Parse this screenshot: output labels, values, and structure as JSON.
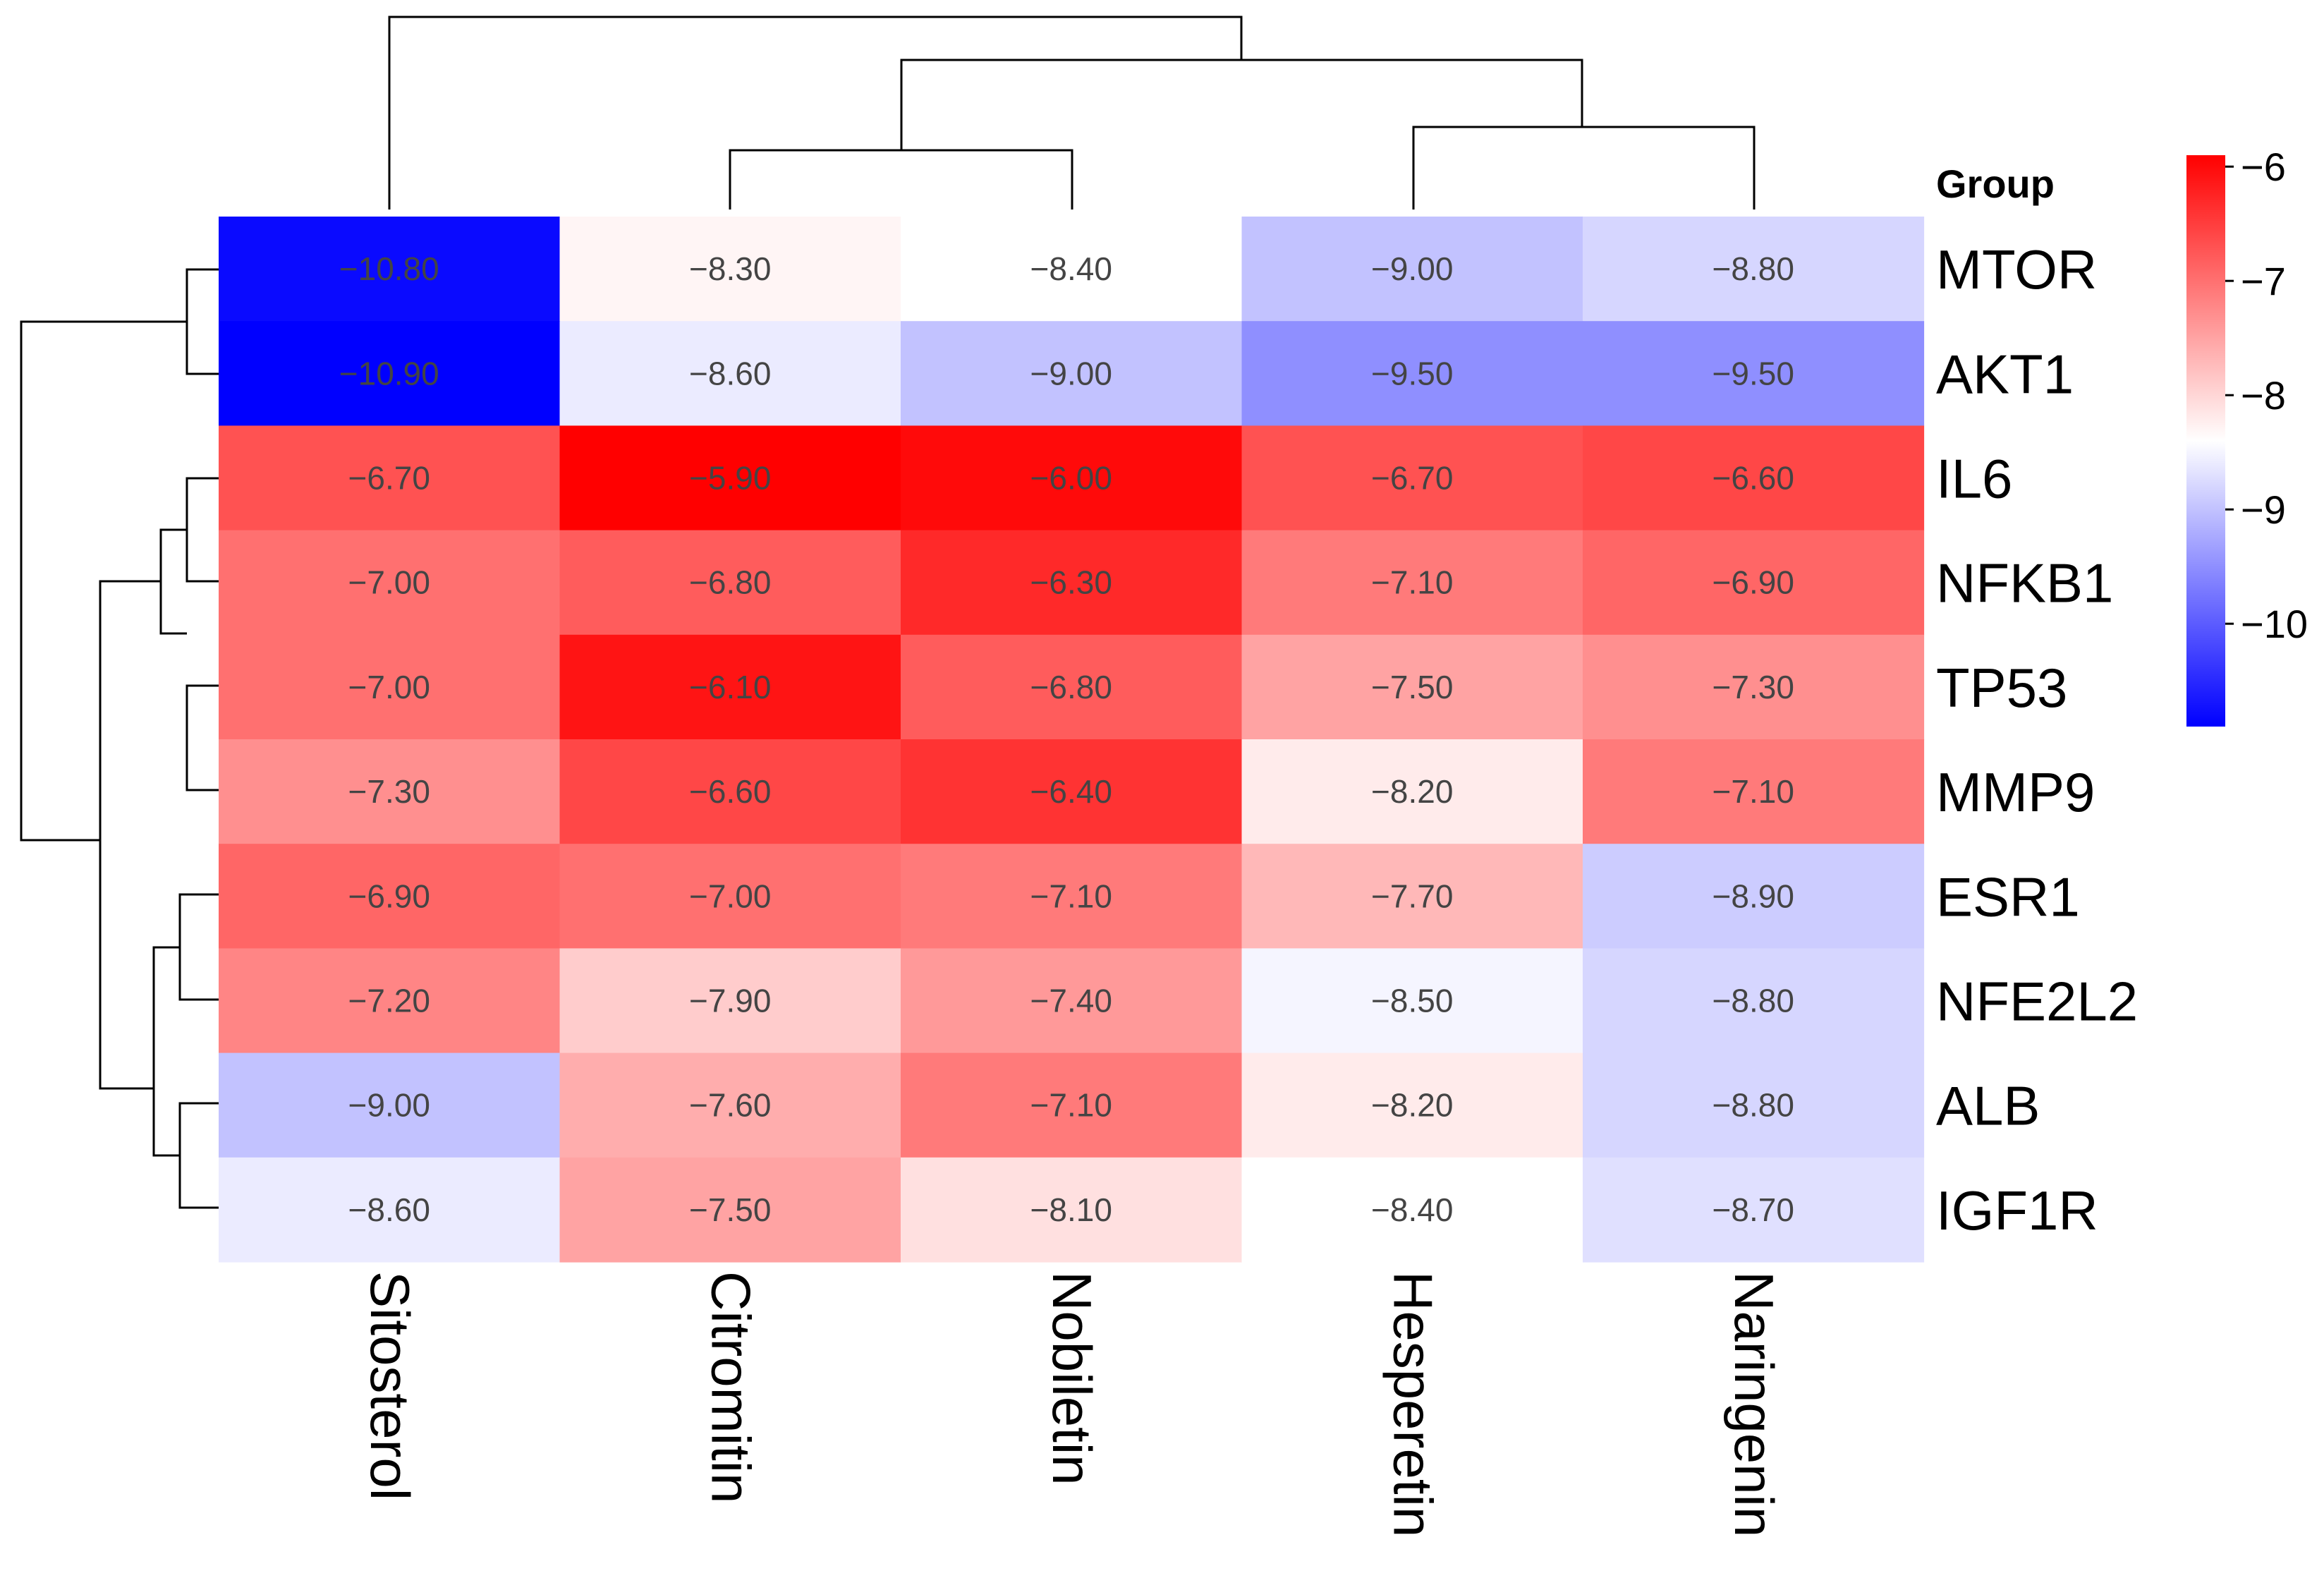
{
  "chart_data": {
    "type": "heatmap",
    "title": "",
    "columns": [
      "Sitosterol",
      "Citromitin",
      "Nobiletin",
      "Hesperetin",
      "Naringenin"
    ],
    "rows": [
      "MTOR",
      "AKT1",
      "IL6",
      "NFKB1",
      "TP53",
      "MMP9",
      "ESR1",
      "NFE2L2",
      "ALB",
      "IGF1R"
    ],
    "values": [
      [
        -10.8,
        -8.3,
        -8.4,
        -9.0,
        -8.8
      ],
      [
        -10.9,
        -8.6,
        -9.0,
        -9.5,
        -9.5
      ],
      [
        -6.7,
        -5.9,
        -6.0,
        -6.7,
        -6.6
      ],
      [
        -7.0,
        -6.8,
        -6.3,
        -7.1,
        -6.9
      ],
      [
        -7.0,
        -6.1,
        -6.8,
        -7.5,
        -7.3
      ],
      [
        -7.3,
        -6.6,
        -6.4,
        -8.2,
        -7.1
      ],
      [
        -6.9,
        -7.0,
        -7.1,
        -7.7,
        -8.9
      ],
      [
        -7.2,
        -7.9,
        -7.4,
        -8.5,
        -8.8
      ],
      [
        -9.0,
        -7.6,
        -7.1,
        -8.2,
        -8.8
      ],
      [
        -8.6,
        -7.5,
        -8.1,
        -8.4,
        -8.7
      ]
    ],
    "cell_labels": [
      [
        "−10.80",
        "−8.30",
        "−8.40",
        "−9.00",
        "−8.80"
      ],
      [
        "−10.90",
        "−8.60",
        "−9.00",
        "−9.50",
        "−9.50"
      ],
      [
        "−6.70",
        "−5.90",
        "−6.00",
        "−6.70",
        "−6.60"
      ],
      [
        "−7.00",
        "−6.80",
        "−6.30",
        "−7.10",
        "−6.90"
      ],
      [
        "−7.00",
        "−6.10",
        "−6.80",
        "−7.50",
        "−7.30"
      ],
      [
        "−7.30",
        "−6.60",
        "−6.40",
        "−8.20",
        "−7.10"
      ],
      [
        "−6.90",
        "−7.00",
        "−7.10",
        "−7.70",
        "−8.90"
      ],
      [
        "−7.20",
        "−7.90",
        "−7.40",
        "−8.50",
        "−8.80"
      ],
      [
        "−9.00",
        "−7.60",
        "−7.10",
        "−8.20",
        "−8.80"
      ],
      [
        "−8.60",
        "−7.50",
        "−8.10",
        "−8.40",
        "−8.70"
      ]
    ],
    "legend": {
      "title": "Group",
      "range": [
        -10.9,
        -5.9
      ],
      "midpoint": -8.4,
      "ticks": [
        -6,
        -7,
        -8,
        -9,
        -10
      ],
      "tick_labels": [
        "−6",
        "−7",
        "−8",
        "−9",
        "−10"
      ],
      "colors": {
        "low": "#0000ff",
        "mid": "#ffffff",
        "high": "#ff0000"
      }
    },
    "column_dendrogram": "((Sitosterol,((Citromitin,Nobiletin),(Hesperetin,Naringenin))))",
    "row_dendrogram": "((MTOR,AKT1),(((IL6,NFKB1),(TP53,MMP9)),((ESR1,NFE2L2),(ALB,IGF1R))))"
  }
}
